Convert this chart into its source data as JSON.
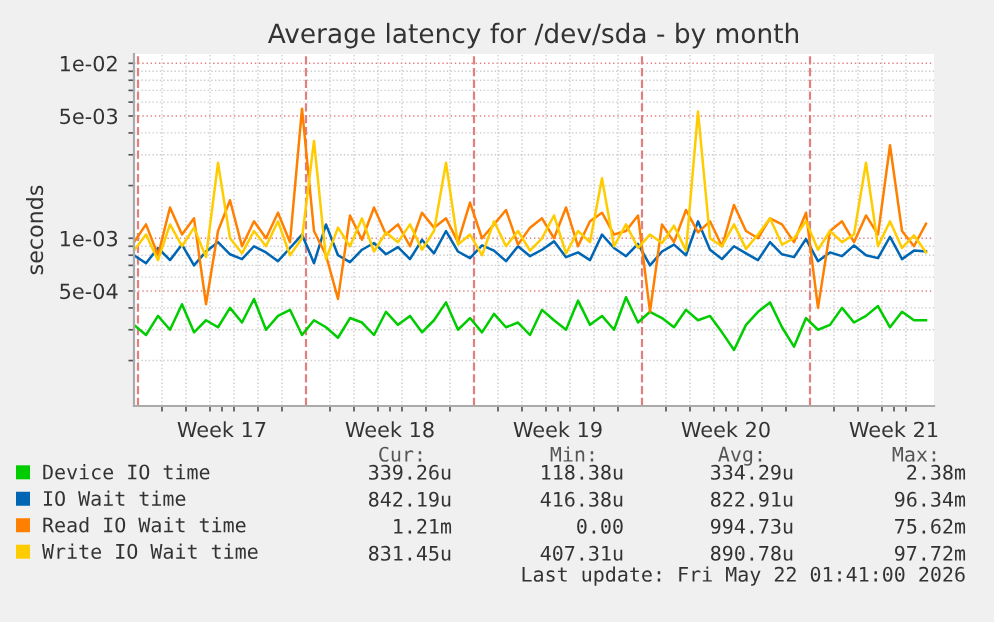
{
  "chart_data": {
    "type": "line",
    "title": "Average latency for /dev/sda - by month",
    "ylabel": "seconds",
    "log": "y",
    "ylim": [
      0.00011,
      0.0113
    ],
    "yticks": [
      {
        "value": 0.0002,
        "label": null
      },
      {
        "value": 0.0003,
        "label": null
      },
      {
        "value": 0.0004,
        "label": null
      },
      {
        "value": 0.0005,
        "label": "5e-04"
      },
      {
        "value": 0.0006,
        "label": null
      },
      {
        "value": 0.0007,
        "label": null
      },
      {
        "value": 0.0008,
        "label": null
      },
      {
        "value": 0.0009,
        "label": null
      },
      {
        "value": 0.001,
        "label": "1e-03"
      },
      {
        "value": 0.002,
        "label": null
      },
      {
        "value": 0.003,
        "label": null
      },
      {
        "value": 0.004,
        "label": null
      },
      {
        "value": 0.005,
        "label": "5e-03"
      },
      {
        "value": 0.006,
        "label": null
      },
      {
        "value": 0.007,
        "label": null
      },
      {
        "value": 0.008,
        "label": null
      },
      {
        "value": 0.009,
        "label": null
      },
      {
        "value": 0.01,
        "label": "1e-02"
      }
    ],
    "xlim": [
      "2026-04-19T20:00",
      "2026-05-23T04:00"
    ],
    "xticks": [
      {
        "value": "2026-04-23T12:00",
        "label": "Week 17"
      },
      {
        "value": "2026-04-30T12:00",
        "label": "Week 18"
      },
      {
        "value": "2026-05-07T12:00",
        "label": "Week 19"
      },
      {
        "value": "2026-05-14T12:00",
        "label": "Week 20"
      },
      {
        "value": "2026-05-21T12:00",
        "label": "Week 21"
      },
      {
        "value": "2026-04-21",
        "label": null
      },
      {
        "value": "2026-04-22",
        "label": null
      },
      {
        "value": "2026-04-23",
        "label": null
      },
      {
        "value": "2026-04-24",
        "label": null
      },
      {
        "value": "2026-04-25",
        "label": null
      },
      {
        "value": "2026-04-26",
        "label": null
      },
      {
        "value": "2026-04-28",
        "label": null
      },
      {
        "value": "2026-04-29",
        "label": null
      },
      {
        "value": "2026-04-30",
        "label": null
      },
      {
        "value": "2026-05-01",
        "label": null
      },
      {
        "value": "2026-05-02",
        "label": null
      },
      {
        "value": "2026-05-03",
        "label": null
      },
      {
        "value": "2026-05-05",
        "label": null
      },
      {
        "value": "2026-05-06",
        "label": null
      },
      {
        "value": "2026-05-07",
        "label": null
      },
      {
        "value": "2026-05-08",
        "label": null
      },
      {
        "value": "2026-05-09",
        "label": null
      },
      {
        "value": "2026-05-10",
        "label": null
      },
      {
        "value": "2026-05-12",
        "label": null
      },
      {
        "value": "2026-05-13",
        "label": null
      },
      {
        "value": "2026-05-14",
        "label": null
      },
      {
        "value": "2026-05-15",
        "label": null
      },
      {
        "value": "2026-05-16",
        "label": null
      },
      {
        "value": "2026-05-17",
        "label": null
      },
      {
        "value": "2026-05-19",
        "label": null
      },
      {
        "value": "2026-05-20",
        "label": null
      },
      {
        "value": "2026-05-21",
        "label": null
      },
      {
        "value": "2026-05-22",
        "label": null
      }
    ],
    "grid": true,
    "legend": "bottom",
    "marker": "none",
    "line_style": "solid",
    "ref_lines": [
      {
        "axis": "x",
        "value": "2026-04-20",
        "color": "#e08080",
        "line_style": "dashed"
      },
      {
        "axis": "x",
        "value": "2026-04-27",
        "color": "#e08080",
        "line_style": "dashed"
      },
      {
        "axis": "x",
        "value": "2026-05-04",
        "color": "#e08080",
        "line_style": "dashed"
      },
      {
        "axis": "x",
        "value": "2026-05-11",
        "color": "#e08080",
        "line_style": "dashed"
      },
      {
        "axis": "x",
        "value": "2026-05-18",
        "color": "#e08080",
        "line_style": "dashed"
      }
    ],
    "x": [
      "2026-04-19T20:00",
      "2026-04-20T08:00",
      "2026-04-20T20:00",
      "2026-04-21T08:00",
      "2026-04-21T20:00",
      "2026-04-22T08:00",
      "2026-04-22T20:00",
      "2026-04-23T08:00",
      "2026-04-23T20:00",
      "2026-04-24T08:00",
      "2026-04-24T20:00",
      "2026-04-25T08:00",
      "2026-04-25T20:00",
      "2026-04-26T08:00",
      "2026-04-26T20:00",
      "2026-04-27T08:00",
      "2026-04-27T20:00",
      "2026-04-28T08:00",
      "2026-04-28T20:00",
      "2026-04-29T08:00",
      "2026-04-29T20:00",
      "2026-04-30T08:00",
      "2026-04-30T20:00",
      "2026-05-01T08:00",
      "2026-05-01T20:00",
      "2026-05-02T08:00",
      "2026-05-02T20:00",
      "2026-05-03T08:00",
      "2026-05-03T20:00",
      "2026-05-04T08:00",
      "2026-05-04T20:00",
      "2026-05-05T08:00",
      "2026-05-05T20:00",
      "2026-05-06T08:00",
      "2026-05-06T20:00",
      "2026-05-07T08:00",
      "2026-05-07T20:00",
      "2026-05-08T08:00",
      "2026-05-08T20:00",
      "2026-05-09T08:00",
      "2026-05-09T20:00",
      "2026-05-10T08:00",
      "2026-05-10T20:00",
      "2026-05-11T08:00",
      "2026-05-11T20:00",
      "2026-05-12T08:00",
      "2026-05-12T20:00",
      "2026-05-13T08:00",
      "2026-05-13T20:00",
      "2026-05-14T08:00",
      "2026-05-14T20:00",
      "2026-05-15T08:00",
      "2026-05-15T20:00",
      "2026-05-16T08:00",
      "2026-05-16T20:00",
      "2026-05-17T08:00",
      "2026-05-17T20:00",
      "2026-05-18T08:00",
      "2026-05-18T20:00",
      "2026-05-19T08:00",
      "2026-05-19T20:00",
      "2026-05-20T08:00",
      "2026-05-20T20:00",
      "2026-05-21T08:00",
      "2026-05-21T20:00",
      "2026-05-22T08:00",
      "2026-05-22T20:00"
    ],
    "series": [
      {
        "name": "Device IO time",
        "color": "#00cc00",
        "values": [
          0.00032,
          0.00028,
          0.00036,
          0.0003,
          0.00042,
          0.00029,
          0.00034,
          0.00031,
          0.0004,
          0.00033,
          0.00045,
          0.0003,
          0.00036,
          0.00039,
          0.00028,
          0.00034,
          0.00031,
          0.00027,
          0.00035,
          0.00033,
          0.00028,
          0.00038,
          0.00032,
          0.00036,
          0.00029,
          0.00034,
          0.00043,
          0.0003,
          0.00035,
          0.00029,
          0.00037,
          0.00031,
          0.00033,
          0.00028,
          0.00039,
          0.00034,
          0.0003,
          0.00044,
          0.00032,
          0.00036,
          0.0003,
          0.00046,
          0.00033,
          0.00038,
          0.00035,
          0.00031,
          0.00039,
          0.00034,
          0.00036,
          0.00029,
          0.00023,
          0.00032,
          0.00038,
          0.00043,
          0.00031,
          0.00024,
          0.00035,
          0.0003,
          0.00032,
          0.0004,
          0.00033,
          0.00036,
          0.00041,
          0.00031,
          0.00038,
          0.00034,
          0.00034
        ]
      },
      {
        "name": "IO Wait time",
        "color": "#0066b3",
        "values": [
          0.0008,
          0.00072,
          0.00088,
          0.00075,
          0.00092,
          0.0007,
          0.00084,
          0.00095,
          0.00081,
          0.00076,
          0.0009,
          0.00083,
          0.00074,
          0.00088,
          0.00105,
          0.00072,
          0.0012,
          0.0008,
          0.00073,
          0.00086,
          0.00094,
          0.00081,
          0.00089,
          0.00076,
          0.00098,
          0.00082,
          0.0011,
          0.00084,
          0.00077,
          0.00091,
          0.00085,
          0.00074,
          0.0009,
          0.00079,
          0.00086,
          0.00096,
          0.00078,
          0.00083,
          0.00075,
          0.00105,
          0.00088,
          0.00079,
          0.00093,
          0.0007,
          0.00084,
          0.00092,
          0.0008,
          0.00125,
          0.00086,
          0.00076,
          0.0009,
          0.00082,
          0.00075,
          0.00095,
          0.00081,
          0.00078,
          0.00099,
          0.00074,
          0.00083,
          0.00079,
          0.00091,
          0.0008,
          0.00077,
          0.00102,
          0.00076,
          0.00085,
          0.00084
        ]
      },
      {
        "name": "Read IO Wait time",
        "color": "#ff8000",
        "values": [
          0.00095,
          0.0012,
          0.0008,
          0.0015,
          0.00105,
          0.0013,
          0.00042,
          0.0011,
          0.00165,
          0.0009,
          0.00125,
          0.001,
          0.0014,
          0.00095,
          0.0055,
          0.0011,
          0.0008,
          0.00045,
          0.00135,
          0.00098,
          0.0015,
          0.00105,
          0.0012,
          0.0009,
          0.0014,
          0.00115,
          0.0013,
          0.00095,
          0.0016,
          0.001,
          0.0012,
          0.00145,
          0.00092,
          0.00115,
          0.0013,
          0.001,
          0.0015,
          0.0009,
          0.00125,
          0.0014,
          0.00105,
          0.0011,
          0.00135,
          0.00038,
          0.0012,
          0.00095,
          0.00145,
          0.00108,
          0.00125,
          0.0009,
          0.00155,
          0.0011,
          0.001,
          0.0013,
          0.0012,
          0.00095,
          0.0014,
          0.0004,
          0.0011,
          0.00125,
          0.00095,
          0.00135,
          0.00105,
          0.0034,
          0.0011,
          0.0009,
          0.00121
        ]
      },
      {
        "name": "Write IO Wait time",
        "color": "#ffcc00",
        "values": [
          0.00085,
          0.00105,
          0.00075,
          0.0012,
          0.0009,
          0.00115,
          0.00078,
          0.0027,
          0.001,
          0.00082,
          0.0011,
          0.0009,
          0.00125,
          0.0008,
          0.001,
          0.0036,
          0.00076,
          0.00115,
          0.0009,
          0.0013,
          0.00084,
          0.00108,
          0.00095,
          0.0012,
          0.00086,
          0.0011,
          0.0027,
          0.00092,
          0.00105,
          0.0008,
          0.00125,
          0.0009,
          0.0011,
          0.00085,
          0.001,
          0.00135,
          0.00082,
          0.0011,
          0.00095,
          0.0022,
          0.0009,
          0.0012,
          0.00088,
          0.00105,
          0.00094,
          0.00118,
          0.00085,
          0.0053,
          0.001,
          0.0009,
          0.0012,
          0.00087,
          0.00105,
          0.0013,
          0.00092,
          0.001,
          0.00125,
          0.00086,
          0.0011,
          0.00095,
          0.00105,
          0.0027,
          0.0009,
          0.00125,
          0.00088,
          0.00104,
          0.00083
        ]
      }
    ],
    "annotations": [
      "Cur:",
      "Min:",
      "Avg:",
      "Max:",
      "339.26u",
      "118.38u",
      "334.29u",
      "2.38m",
      "842.19u",
      "416.38u",
      "822.91u",
      "96.34m",
      "1.21m",
      "0.00",
      "994.73u",
      "75.62m",
      "831.45u",
      "407.31u",
      "890.78u",
      "97.72m",
      "Last update: Fri May 22 01:41:00 2026"
    ]
  }
}
